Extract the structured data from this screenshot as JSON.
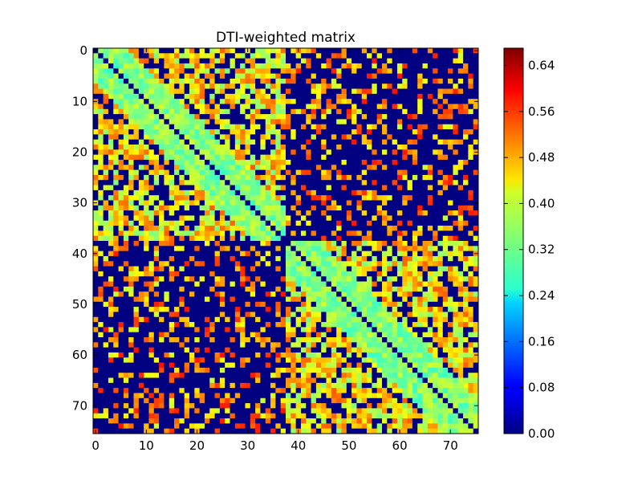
{
  "chart_data": {
    "type": "heatmap",
    "title": "DTI-weighted matrix",
    "n": 76,
    "x_ticks": [
      0,
      10,
      20,
      30,
      40,
      50,
      60,
      70
    ],
    "y_ticks": [
      0,
      10,
      20,
      30,
      40,
      50,
      60,
      70
    ],
    "xlim": [
      -0.5,
      75.5
    ],
    "ylim": [
      75.5,
      -0.5
    ],
    "colorbar": {
      "cmap": "jet",
      "vmin": 0.0,
      "vmax": 0.67,
      "tick_values": [
        0.0,
        0.08,
        0.16,
        0.24,
        0.32,
        0.4,
        0.48,
        0.56,
        0.64
      ],
      "tick_labels": [
        "0.00",
        "0.08",
        "0.16",
        "0.24",
        "0.32",
        "0.40",
        "0.48",
        "0.56",
        "0.64"
      ]
    },
    "blocks": [
      {
        "rows": [
          0,
          37
        ],
        "cols": [
          0,
          37
        ],
        "density": 0.72,
        "mean": 0.43,
        "spread": 0.06
      },
      {
        "rows": [
          0,
          37
        ],
        "cols": [
          38,
          75
        ],
        "density": 0.32,
        "mean": 0.48,
        "spread": 0.06
      },
      {
        "rows": [
          38,
          75
        ],
        "cols": [
          0,
          37
        ],
        "density": 0.32,
        "mean": 0.48,
        "spread": 0.06
      },
      {
        "rows": [
          38,
          75
        ],
        "cols": [
          38,
          75
        ],
        "density": 0.72,
        "mean": 0.43,
        "spread": 0.06
      }
    ],
    "near_diagonal": {
      "width": 6,
      "mean": 0.34,
      "spread": 0.05
    },
    "diagonal_value": 0.0
  }
}
